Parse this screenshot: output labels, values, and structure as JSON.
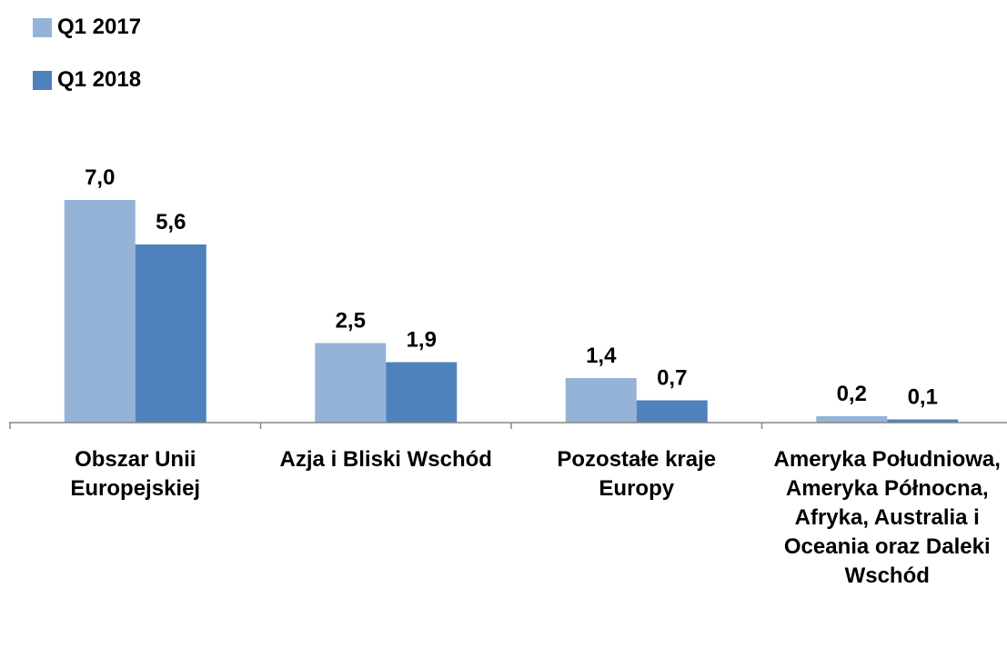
{
  "chart_data": {
    "type": "bar",
    "categories": [
      "Obszar Unii Europejskiej",
      "Azja i Bliski Wschód",
      "Pozostałe kraje Europy",
      "Ameryka Południowa, Ameryka Północna, Afryka, Australia i Oceania oraz Daleki Wschód"
    ],
    "series": [
      {
        "name": "Q1 2017",
        "values": [
          7.0,
          2.5,
          1.4,
          0.2
        ],
        "labels": [
          "7,0",
          "2,5",
          "1,4",
          "0,2"
        ],
        "color": "#95b3d7"
      },
      {
        "name": "Q1 2018",
        "values": [
          5.6,
          1.9,
          0.7,
          0.1
        ],
        "labels": [
          "5,6",
          "1,9",
          "0,7",
          "0,1"
        ],
        "color": "#4f81bd"
      }
    ],
    "legend_position": "top-left",
    "ylim": [
      0,
      7.0
    ],
    "grid": false,
    "axis_color": "#878787"
  }
}
